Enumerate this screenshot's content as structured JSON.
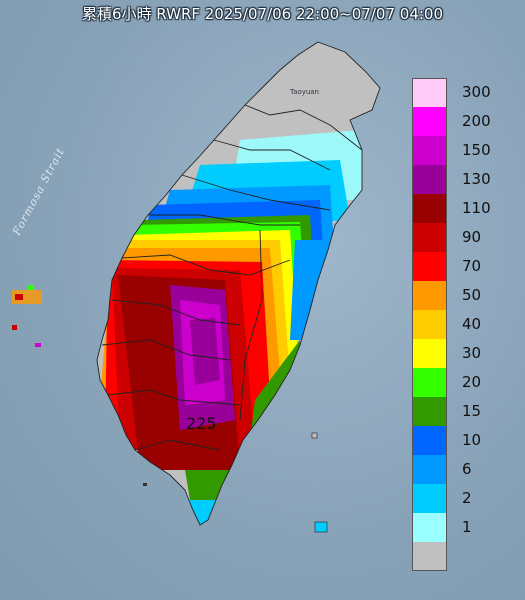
{
  "title": "累積6小時 RWRF 2025/07/06 22:00~07/07 04:00",
  "labels": {
    "strait": "Formosa Strait",
    "taoyuan": "Taoyuan",
    "peak_value": "225"
  },
  "legend": [
    {
      "value": "300",
      "color": "#ffccf7"
    },
    {
      "value": "200",
      "color": "#ff00ff"
    },
    {
      "value": "150",
      "color": "#cc00cc"
    },
    {
      "value": "130",
      "color": "#990099"
    },
    {
      "value": "110",
      "color": "#990000"
    },
    {
      "value": "90",
      "color": "#cc0000"
    },
    {
      "value": "70",
      "color": "#ff0000"
    },
    {
      "value": "50",
      "color": "#ff9900"
    },
    {
      "value": "40",
      "color": "#ffcc00"
    },
    {
      "value": "30",
      "color": "#ffff00"
    },
    {
      "value": "20",
      "color": "#33ff00"
    },
    {
      "value": "15",
      "color": "#339900"
    },
    {
      "value": "10",
      "color": "#0066ff"
    },
    {
      "value": "6",
      "color": "#0099ff"
    },
    {
      "value": "2",
      "color": "#00ccff"
    },
    {
      "value": "1",
      "color": "#99ffff"
    },
    {
      "value": "",
      "color": "#c0c0c0"
    }
  ],
  "colors": {
    "sea": "#8fa9bf",
    "land_dry": "#c0c0c0",
    "county_border": "#222222"
  }
}
